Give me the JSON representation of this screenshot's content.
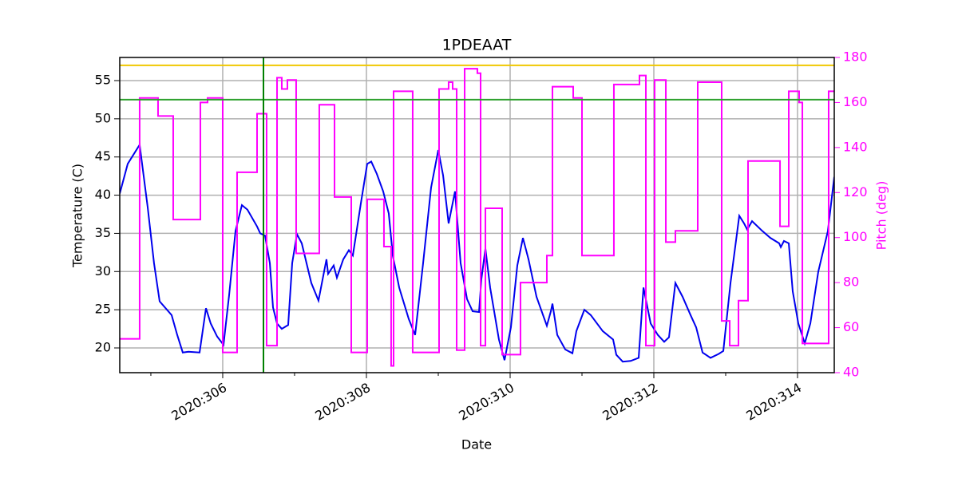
{
  "chart_data": {
    "type": "line",
    "title": "1PDEAAT",
    "xlabel": "Date",
    "ylabel": "Temperature (C)",
    "y2label": "Pitch (deg)",
    "xlim": [
      304.567,
      314.511
    ],
    "ylim": [
      16.76,
      58.03
    ],
    "y2lim": [
      40,
      180
    ],
    "xticks": [
      {
        "value": 306,
        "label": "2020:306"
      },
      {
        "value": 308,
        "label": "2020:308"
      },
      {
        "value": 310,
        "label": "2020:310"
      },
      {
        "value": 312,
        "label": "2020:312"
      },
      {
        "value": 314,
        "label": "2020:314"
      }
    ],
    "xminorticks": [
      305,
      307,
      309,
      311,
      313
    ],
    "yticks": [
      20,
      25,
      30,
      35,
      40,
      45,
      50,
      55
    ],
    "y2ticks": [
      40,
      60,
      80,
      100,
      120,
      140,
      160,
      180
    ],
    "grid": true,
    "y2color": "#ff00ff",
    "hlines": [
      {
        "value": 57,
        "color": "#f0c800"
      },
      {
        "value": 52.5,
        "color": "#2ca02c"
      }
    ],
    "vlines": [
      {
        "value": 306.567,
        "color": "#008000"
      }
    ],
    "series": [
      {
        "color": "#0000ee",
        "axis": "y",
        "x": [
          304.567,
          304.678,
          304.844,
          304.956,
          305.044,
          305.122,
          305.289,
          305.367,
          305.444,
          305.522,
          305.678,
          305.767,
          305.833,
          305.922,
          306.011,
          306.089,
          306.178,
          306.267,
          306.344,
          306.478,
          306.522,
          306.589,
          306.656,
          306.7,
          306.756,
          306.822,
          306.911,
          306.967,
          307.033,
          307.1,
          307.233,
          307.333,
          307.444,
          307.467,
          307.544,
          307.589,
          307.678,
          307.756,
          307.811,
          307.922,
          308.011,
          308.067,
          308.144,
          308.233,
          308.311,
          308.367,
          308.456,
          308.589,
          308.678,
          308.789,
          308.9,
          309.0,
          309.067,
          309.144,
          309.233,
          309.311,
          309.4,
          309.478,
          309.567,
          309.6,
          309.656,
          309.722,
          309.844,
          309.922,
          310.011,
          310.1,
          310.178,
          310.256,
          310.367,
          310.511,
          310.567,
          310.589,
          310.656,
          310.767,
          310.867,
          310.922,
          311.033,
          311.122,
          311.289,
          311.433,
          311.478,
          311.567,
          311.678,
          311.789,
          311.856,
          311.956,
          312.056,
          312.144,
          312.211,
          312.3,
          312.4,
          312.511,
          312.589,
          312.678,
          312.789,
          312.9,
          312.967,
          313.067,
          313.189,
          313.256,
          313.3,
          313.367,
          313.511,
          313.622,
          313.744,
          313.767,
          313.811,
          313.878,
          313.933,
          314.011,
          314.1,
          314.178,
          314.289,
          314.422,
          314.511
        ],
        "values": [
          40.2,
          44.1,
          46.6,
          38.4,
          31.1,
          26.1,
          24.3,
          21.7,
          19.4,
          19.5,
          19.4,
          25.2,
          23.2,
          21.5,
          20.4,
          26.9,
          35.3,
          38.7,
          38.1,
          35.9,
          35.0,
          34.7,
          31.1,
          25.3,
          23.2,
          22.5,
          23.0,
          31.1,
          34.9,
          33.7,
          28.5,
          26.2,
          31.6,
          29.7,
          30.8,
          29.2,
          31.6,
          32.8,
          32.1,
          38.9,
          44.1,
          44.4,
          42.8,
          40.5,
          37.6,
          32.1,
          27.9,
          23.8,
          21.7,
          31.1,
          41.0,
          45.9,
          42.6,
          36.3,
          40.5,
          31.1,
          26.4,
          24.8,
          24.7,
          29.0,
          33.0,
          27.9,
          21.1,
          18.4,
          22.7,
          30.8,
          34.4,
          31.6,
          26.7,
          22.9,
          24.8,
          25.8,
          21.7,
          19.8,
          19.3,
          22.2,
          25.0,
          24.3,
          22.2,
          21.1,
          19.1,
          18.2,
          18.3,
          18.7,
          27.9,
          23.2,
          21.7,
          20.8,
          21.4,
          28.5,
          26.7,
          24.3,
          22.7,
          19.4,
          18.7,
          19.2,
          19.6,
          28.5,
          37.3,
          36.3,
          35.5,
          36.6,
          35.3,
          34.4,
          33.7,
          33.2,
          34.0,
          33.7,
          27.4,
          23.2,
          20.6,
          23.2,
          30.0,
          35.3,
          42.4
        ]
      },
      {
        "color": "#ff00ff",
        "axis": "y2",
        "step": "post",
        "x": [
          304.567,
          304.844,
          305.1,
          305.311,
          305.689,
          305.789,
          306,
          306.2,
          306.478,
          306.611,
          306.756,
          306.822,
          306.9,
          307.022,
          307.344,
          307.556,
          307.789,
          308.011,
          308.244,
          308.344,
          308.378,
          308.644,
          309.011,
          309.144,
          309.2,
          309.256,
          309.367,
          309.544,
          309.589,
          309.656,
          309.889,
          310.144,
          310.511,
          310.589,
          310.878,
          311,
          311.444,
          311.8,
          311.889,
          312.011,
          312.167,
          312.3,
          312.611,
          312.944,
          313.056,
          313.178,
          313.311,
          313.756,
          313.878,
          314.022,
          314.067,
          314.433
        ],
        "values": [
          55,
          162,
          154,
          108,
          160,
          162,
          49,
          129,
          155,
          52,
          171,
          166,
          170,
          93,
          159,
          118,
          49,
          117,
          96,
          43,
          165,
          49,
          166,
          169,
          166,
          50,
          175,
          173,
          52,
          113,
          48,
          80,
          92,
          167,
          162,
          92,
          168,
          172,
          52,
          170,
          98,
          103,
          169,
          63,
          52,
          72,
          134,
          105,
          165,
          160,
          53,
          165
        ]
      }
    ]
  }
}
